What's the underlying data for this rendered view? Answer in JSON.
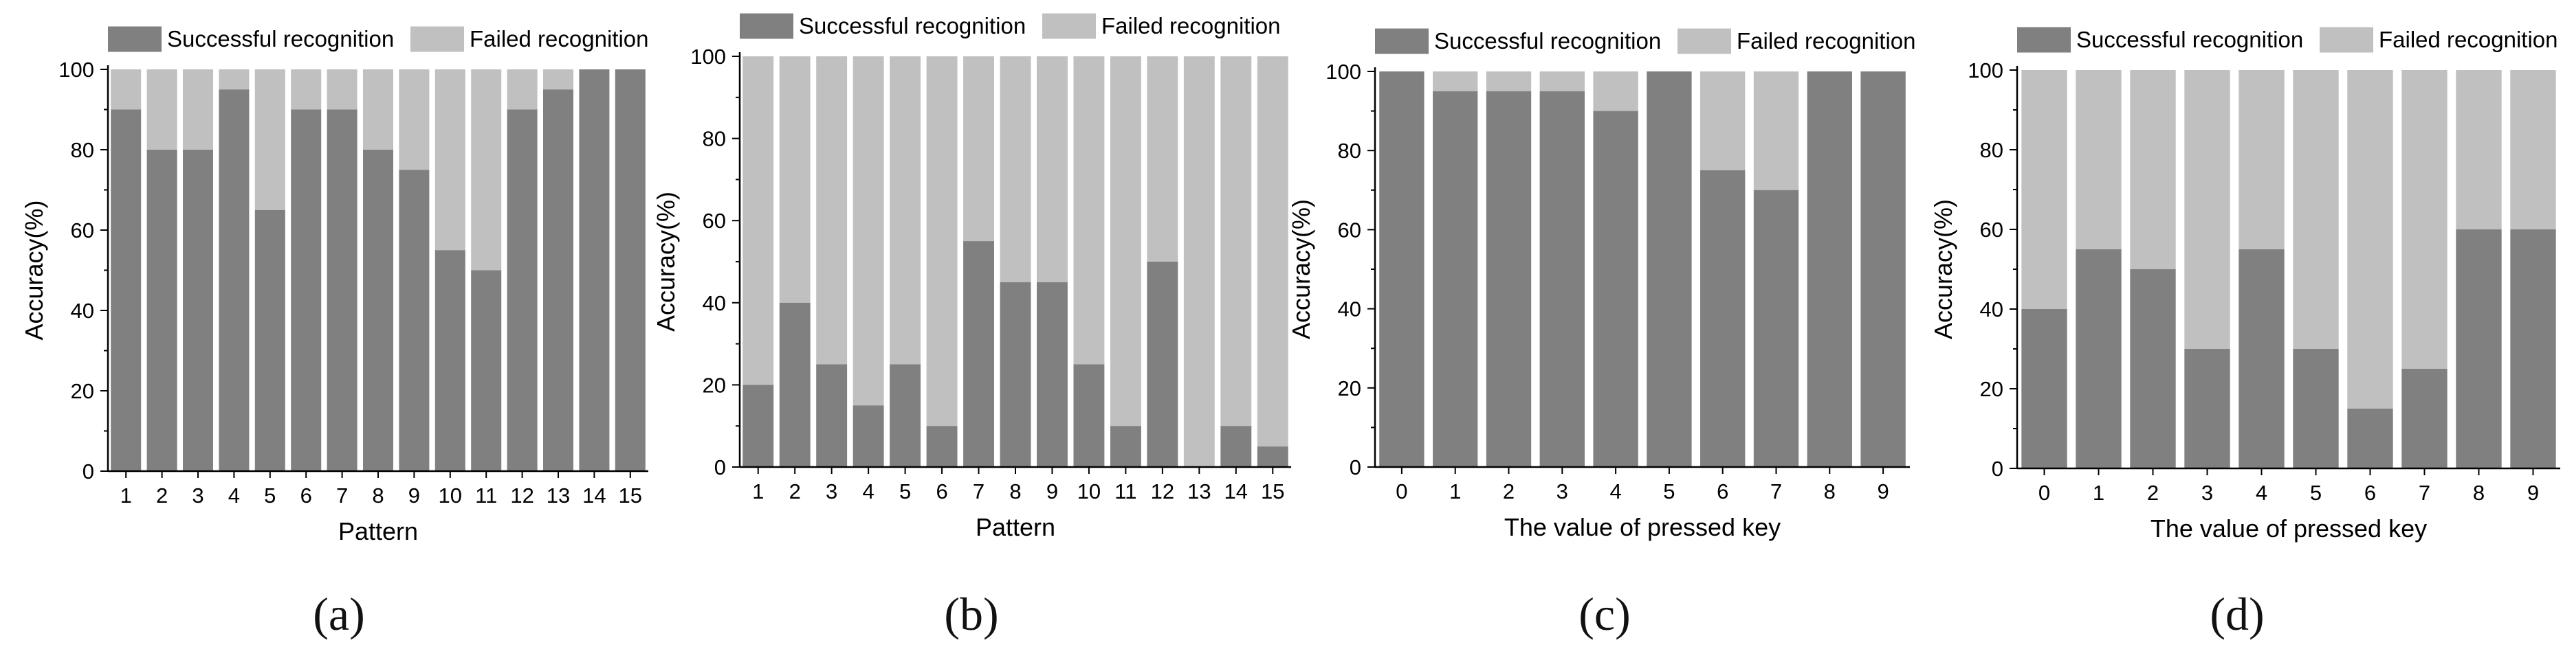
{
  "legend": {
    "success_label": "Successful recognition",
    "failed_label": "Failed recognition"
  },
  "colors": {
    "success": "#808080",
    "failed": "#c0c0c0",
    "axis": "#000000"
  },
  "chart_data": [
    {
      "id": "a",
      "type": "bar",
      "stacked": true,
      "panel_label": "(a)",
      "title": "",
      "xlabel": "Pattern",
      "ylabel": "Accuracy(%)",
      "ylim": [
        0,
        100
      ],
      "yticks": [
        0,
        20,
        40,
        60,
        80,
        100
      ],
      "legend_position": "top",
      "categories": [
        "1",
        "2",
        "3",
        "4",
        "5",
        "6",
        "7",
        "8",
        "9",
        "10",
        "11",
        "12",
        "13",
        "14",
        "15"
      ],
      "series": [
        {
          "name": "Successful recognition",
          "values": [
            90,
            80,
            80,
            95,
            65,
            90,
            90,
            80,
            75,
            55,
            50,
            90,
            95,
            100,
            100
          ]
        },
        {
          "name": "Failed recognition",
          "values": [
            10,
            20,
            20,
            5,
            35,
            10,
            10,
            20,
            25,
            45,
            50,
            10,
            5,
            0,
            0
          ]
        }
      ]
    },
    {
      "id": "b",
      "type": "bar",
      "stacked": true,
      "panel_label": "(b)",
      "title": "",
      "xlabel": "Pattern",
      "ylabel": "Accuracy(%)",
      "ylim": [
        0,
        100
      ],
      "yticks": [
        0,
        20,
        40,
        60,
        80,
        100
      ],
      "legend_position": "top",
      "categories": [
        "1",
        "2",
        "3",
        "4",
        "5",
        "6",
        "7",
        "8",
        "9",
        "10",
        "11",
        "12",
        "13",
        "14",
        "15"
      ],
      "series": [
        {
          "name": "Successful recognition",
          "values": [
            20,
            40,
            25,
            15,
            25,
            10,
            55,
            45,
            45,
            25,
            10,
            50,
            0,
            10,
            5
          ]
        },
        {
          "name": "Failed recognition",
          "values": [
            80,
            60,
            75,
            85,
            75,
            90,
            45,
            55,
            55,
            75,
            90,
            50,
            100,
            90,
            95
          ]
        }
      ]
    },
    {
      "id": "c",
      "type": "bar",
      "stacked": true,
      "panel_label": "(c)",
      "title": "",
      "xlabel": "The value of pressed key",
      "ylabel": "Accuracy(%)",
      "ylim": [
        0,
        100
      ],
      "yticks": [
        0,
        20,
        40,
        60,
        80,
        100
      ],
      "legend_position": "top",
      "categories": [
        "0",
        "1",
        "2",
        "3",
        "4",
        "5",
        "6",
        "7",
        "8",
        "9"
      ],
      "series": [
        {
          "name": "Successful recognition",
          "values": [
            100,
            95,
            95,
            95,
            90,
            100,
            75,
            70,
            100,
            100
          ]
        },
        {
          "name": "Failed recognition",
          "values": [
            0,
            5,
            5,
            5,
            10,
            0,
            25,
            30,
            0,
            0
          ]
        }
      ]
    },
    {
      "id": "d",
      "type": "bar",
      "stacked": true,
      "panel_label": "(d)",
      "title": "",
      "xlabel": "The value of pressed key",
      "ylabel": "Accuracy(%)",
      "ylim": [
        0,
        100
      ],
      "yticks": [
        0,
        20,
        40,
        60,
        80,
        100
      ],
      "legend_position": "top",
      "categories": [
        "0",
        "1",
        "2",
        "3",
        "4",
        "5",
        "6",
        "7",
        "8",
        "9"
      ],
      "series": [
        {
          "name": "Successful recognition",
          "values": [
            40,
            55,
            50,
            30,
            55,
            30,
            15,
            25,
            60,
            60
          ]
        },
        {
          "name": "Failed recognition",
          "values": [
            60,
            45,
            50,
            70,
            45,
            70,
            85,
            75,
            40,
            40
          ]
        }
      ]
    }
  ]
}
